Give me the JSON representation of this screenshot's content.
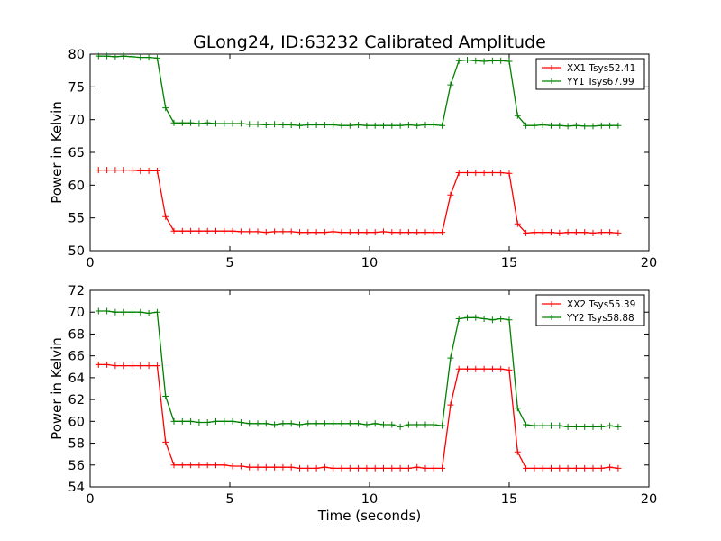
{
  "chart_data": [
    {
      "type": "line",
      "title": "GLong24, ID:63232 Calibrated Amplitude",
      "xlabel": "",
      "ylabel": "Power in Kelvin",
      "xlim": [
        0,
        20
      ],
      "ylim": [
        50,
        80
      ],
      "xticks": [
        "0",
        "5",
        "10",
        "15",
        "20"
      ],
      "yticks": [
        "50",
        "55",
        "60",
        "65",
        "70",
        "75",
        "80"
      ],
      "legend_position": "top-right",
      "x": [
        0.3,
        0.6,
        0.9,
        1.2,
        1.5,
        1.8,
        2.1,
        2.4,
        2.7,
        3.0,
        3.3,
        3.6,
        3.9,
        4.2,
        4.5,
        4.8,
        5.1,
        5.4,
        5.7,
        6.0,
        6.3,
        6.6,
        6.9,
        7.2,
        7.5,
        7.8,
        8.1,
        8.4,
        8.7,
        9.0,
        9.3,
        9.6,
        9.9,
        10.2,
        10.5,
        10.8,
        11.1,
        11.4,
        11.7,
        12.0,
        12.3,
        12.6,
        12.9,
        13.2,
        13.5,
        13.8,
        14.1,
        14.4,
        14.7,
        15.0,
        15.3,
        15.6,
        15.9,
        16.2,
        16.5,
        16.8,
        17.1,
        17.4,
        17.7,
        18.0,
        18.3,
        18.6,
        18.9
      ],
      "series": [
        {
          "name": "XX1 Tsys52.41",
          "color": "#ff0000",
          "values": [
            62.3,
            62.3,
            62.3,
            62.3,
            62.3,
            62.2,
            62.2,
            62.2,
            55.2,
            53.0,
            53.0,
            53.0,
            53.0,
            53.0,
            53.0,
            53.0,
            53.0,
            52.9,
            52.9,
            52.9,
            52.8,
            52.9,
            52.9,
            52.9,
            52.8,
            52.8,
            52.8,
            52.8,
            52.9,
            52.8,
            52.8,
            52.8,
            52.8,
            52.8,
            52.9,
            52.8,
            52.8,
            52.8,
            52.8,
            52.8,
            52.8,
            52.8,
            58.5,
            61.9,
            61.9,
            61.9,
            61.9,
            61.9,
            61.9,
            61.8,
            54.1,
            52.7,
            52.8,
            52.8,
            52.8,
            52.7,
            52.8,
            52.8,
            52.8,
            52.7,
            52.8,
            52.8,
            52.7
          ]
        },
        {
          "name": "YY1 Tsys67.99",
          "color": "#008000",
          "values": [
            79.7,
            79.7,
            79.6,
            79.7,
            79.6,
            79.5,
            79.5,
            79.4,
            71.8,
            69.5,
            69.5,
            69.5,
            69.4,
            69.5,
            69.4,
            69.4,
            69.4,
            69.4,
            69.3,
            69.3,
            69.2,
            69.3,
            69.2,
            69.2,
            69.1,
            69.2,
            69.2,
            69.2,
            69.2,
            69.1,
            69.1,
            69.2,
            69.1,
            69.1,
            69.1,
            69.1,
            69.1,
            69.2,
            69.1,
            69.2,
            69.2,
            69.1,
            75.3,
            79.0,
            79.1,
            79.0,
            78.9,
            79.0,
            79.0,
            78.9,
            70.6,
            69.1,
            69.1,
            69.2,
            69.1,
            69.1,
            69.0,
            69.1,
            69.0,
            69.0,
            69.1,
            69.1,
            69.1
          ]
        }
      ]
    },
    {
      "type": "line",
      "title": "",
      "xlabel": "Time (seconds)",
      "ylabel": "Power in Kelvin",
      "xlim": [
        0,
        20
      ],
      "ylim": [
        54,
        72
      ],
      "xticks": [
        "0",
        "5",
        "10",
        "15",
        "20"
      ],
      "yticks": [
        "54",
        "56",
        "58",
        "60",
        "62",
        "64",
        "66",
        "68",
        "70",
        "72"
      ],
      "legend_position": "top-right",
      "x": [
        0.3,
        0.6,
        0.9,
        1.2,
        1.5,
        1.8,
        2.1,
        2.4,
        2.7,
        3.0,
        3.3,
        3.6,
        3.9,
        4.2,
        4.5,
        4.8,
        5.1,
        5.4,
        5.7,
        6.0,
        6.3,
        6.6,
        6.9,
        7.2,
        7.5,
        7.8,
        8.1,
        8.4,
        8.7,
        9.0,
        9.3,
        9.6,
        9.9,
        10.2,
        10.5,
        10.8,
        11.1,
        11.4,
        11.7,
        12.0,
        12.3,
        12.6,
        12.9,
        13.2,
        13.5,
        13.8,
        14.1,
        14.4,
        14.7,
        15.0,
        15.3,
        15.6,
        15.9,
        16.2,
        16.5,
        16.8,
        17.1,
        17.4,
        17.7,
        18.0,
        18.3,
        18.6,
        18.9
      ],
      "series": [
        {
          "name": "XX2 Tsys55.39",
          "color": "#ff0000",
          "values": [
            65.2,
            65.2,
            65.1,
            65.1,
            65.1,
            65.1,
            65.1,
            65.1,
            58.1,
            56.0,
            56.0,
            56.0,
            56.0,
            56.0,
            56.0,
            56.0,
            55.9,
            55.9,
            55.8,
            55.8,
            55.8,
            55.8,
            55.8,
            55.8,
            55.7,
            55.7,
            55.7,
            55.8,
            55.7,
            55.7,
            55.7,
            55.7,
            55.7,
            55.7,
            55.7,
            55.7,
            55.7,
            55.7,
            55.8,
            55.7,
            55.7,
            55.7,
            61.5,
            64.8,
            64.8,
            64.8,
            64.8,
            64.8,
            64.8,
            64.7,
            57.2,
            55.7,
            55.7,
            55.7,
            55.7,
            55.7,
            55.7,
            55.7,
            55.7,
            55.7,
            55.7,
            55.8,
            55.7
          ]
        },
        {
          "name": "YY2 Tsys58.88",
          "color": "#008000",
          "values": [
            70.1,
            70.1,
            70.0,
            70.0,
            70.0,
            70.0,
            69.9,
            70.0,
            62.3,
            60.0,
            60.0,
            60.0,
            59.9,
            59.9,
            60.0,
            60.0,
            60.0,
            59.9,
            59.8,
            59.8,
            59.8,
            59.7,
            59.8,
            59.8,
            59.7,
            59.8,
            59.8,
            59.8,
            59.8,
            59.8,
            59.8,
            59.8,
            59.7,
            59.8,
            59.7,
            59.7,
            59.5,
            59.7,
            59.7,
            59.7,
            59.7,
            59.6,
            65.8,
            69.4,
            69.5,
            69.5,
            69.4,
            69.3,
            69.4,
            69.3,
            61.2,
            59.7,
            59.6,
            59.6,
            59.6,
            59.6,
            59.5,
            59.5,
            59.5,
            59.5,
            59.5,
            59.6,
            59.5
          ]
        }
      ]
    }
  ]
}
